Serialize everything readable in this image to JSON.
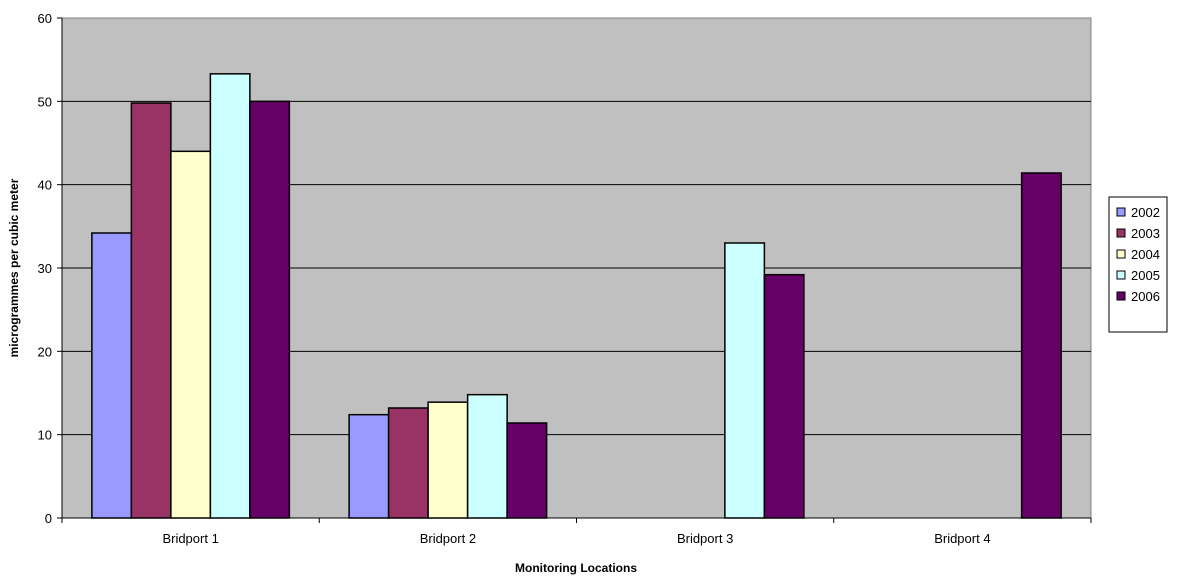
{
  "chart_data": {
    "type": "bar",
    "title": "",
    "xlabel": "Monitoring Locations",
    "ylabel": "microgrammes per cubic meter",
    "categories": [
      "Bridport 1",
      "Bridport 2",
      "Bridport 3",
      "Bridport 4"
    ],
    "ylim": [
      0,
      60
    ],
    "yticks": [
      0,
      10,
      20,
      30,
      40,
      50,
      60
    ],
    "grid": true,
    "legend_position": "right",
    "plot_background": "#c0c0c0",
    "series": [
      {
        "name": "2002",
        "color": "#9999ff",
        "values": [
          34.2,
          12.4,
          null,
          null
        ]
      },
      {
        "name": "2003",
        "color": "#993366",
        "values": [
          49.8,
          13.2,
          null,
          null
        ]
      },
      {
        "name": "2004",
        "color": "#ffffcc",
        "values": [
          44.0,
          13.9,
          null,
          null
        ]
      },
      {
        "name": "2005",
        "color": "#ccffff",
        "values": [
          53.3,
          14.8,
          33.0,
          null
        ]
      },
      {
        "name": "2006",
        "color": "#660066",
        "values": [
          50.0,
          11.4,
          29.2,
          41.4
        ]
      }
    ]
  }
}
